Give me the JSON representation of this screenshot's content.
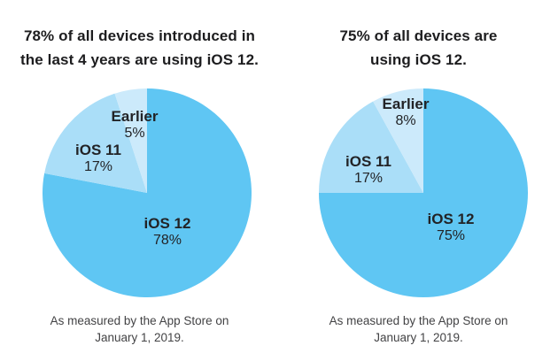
{
  "accent_colors": {
    "ios12_blue": "#5FC6F3",
    "ios11_light_blue": "#AADEF8",
    "earlier_pale_blue": "#CCEAFB",
    "text_dark": "#1d1d1f"
  },
  "chart_data": [
    {
      "type": "pie",
      "title": "78% of all devices introduced in the last 4 years are using iOS 12.",
      "title_lines": [
        "78% of all devices introduced in",
        "the last 4 years are using iOS 12."
      ],
      "caption": "As measured by the App Store on January 1, 2019.",
      "caption_lines": [
        "As measured by the App Store on",
        "January 1, 2019."
      ],
      "start_angle_deg": 0,
      "direction": "clockwise",
      "legend_position": "inside",
      "slices": [
        {
          "label": "iOS 12",
          "value": 78,
          "pct_label": "78%",
          "color": "#5FC6F3"
        },
        {
          "label": "iOS 11",
          "value": 17,
          "pct_label": "17%",
          "color": "#AADEF8"
        },
        {
          "label": "Earlier",
          "value": 5,
          "pct_label": "5%",
          "color": "#CCEAFB"
        }
      ]
    },
    {
      "type": "pie",
      "title": "75% of all devices are using iOS 12.",
      "title_lines": [
        "75% of all devices are",
        "using iOS 12."
      ],
      "caption": "As measured by the App Store on January 1, 2019.",
      "caption_lines": [
        "As measured by the App Store on",
        "January 1, 2019."
      ],
      "start_angle_deg": 0,
      "direction": "clockwise",
      "legend_position": "inside",
      "slices": [
        {
          "label": "iOS 12",
          "value": 75,
          "pct_label": "75%",
          "color": "#5FC6F3"
        },
        {
          "label": "iOS 11",
          "value": 17,
          "pct_label": "17%",
          "color": "#AADEF8"
        },
        {
          "label": "Earlier",
          "value": 8,
          "pct_label": "8%",
          "color": "#CCEAFB"
        }
      ]
    }
  ]
}
